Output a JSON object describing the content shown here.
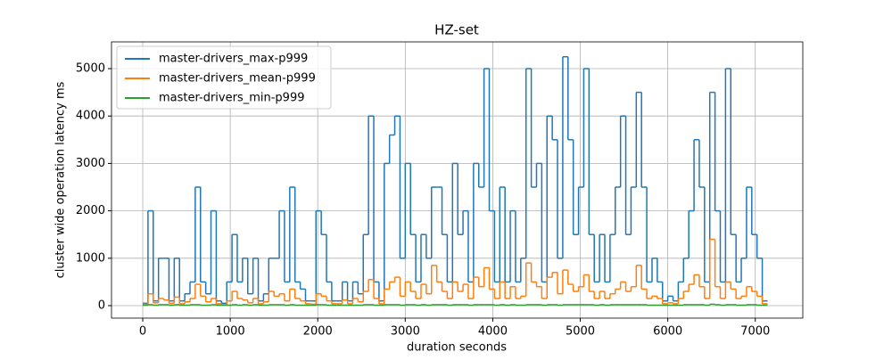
{
  "chart_data": {
    "type": "line",
    "step": "post",
    "title": "HZ-set",
    "x_label": "duration seconds",
    "y_label": "cluster wide operation latency ms",
    "x": [
      0,
      60,
      120,
      180,
      240,
      300,
      360,
      420,
      480,
      540,
      600,
      660,
      720,
      780,
      840,
      900,
      960,
      1020,
      1080,
      1140,
      1200,
      1260,
      1320,
      1380,
      1440,
      1500,
      1560,
      1620,
      1680,
      1740,
      1800,
      1860,
      1920,
      1980,
      2040,
      2100,
      2160,
      2220,
      2280,
      2340,
      2400,
      2460,
      2520,
      2580,
      2640,
      2700,
      2760,
      2820,
      2880,
      2940,
      3000,
      3060,
      3120,
      3180,
      3240,
      3300,
      3360,
      3420,
      3480,
      3540,
      3600,
      3660,
      3720,
      3780,
      3840,
      3900,
      3960,
      4020,
      4080,
      4140,
      4200,
      4260,
      4320,
      4380,
      4440,
      4500,
      4560,
      4620,
      4680,
      4740,
      4800,
      4860,
      4920,
      4980,
      5040,
      5100,
      5160,
      5220,
      5280,
      5340,
      5400,
      5460,
      5520,
      5580,
      5640,
      5700,
      5760,
      5820,
      5880,
      5940,
      6000,
      6060,
      6120,
      6180,
      6240,
      6300,
      6360,
      6420,
      6480,
      6540,
      6600,
      6660,
      6720,
      6780,
      6840,
      6900,
      6960,
      7020,
      7080,
      7140
    ],
    "series": [
      {
        "name": "master-drivers_max-p999",
        "color": "#1f77b4",
        "values": [
          50,
          2000,
          100,
          1000,
          1000,
          100,
          1000,
          100,
          250,
          500,
          2500,
          500,
          250,
          2000,
          100,
          50,
          500,
          1500,
          500,
          1000,
          250,
          1000,
          100,
          250,
          1000,
          1000,
          2000,
          500,
          2500,
          500,
          350,
          100,
          100,
          2000,
          1500,
          500,
          100,
          100,
          500,
          100,
          500,
          250,
          1500,
          4000,
          500,
          100,
          3000,
          3600,
          4000,
          1000,
          3000,
          1500,
          500,
          1500,
          1000,
          2500,
          2500,
          1500,
          500,
          3000,
          1500,
          2000,
          500,
          3000,
          2500,
          5000,
          2000,
          500,
          2500,
          500,
          2000,
          500,
          1000,
          5000,
          2500,
          3000,
          500,
          4000,
          3500,
          1000,
          5250,
          3500,
          1500,
          2500,
          5000,
          1500,
          500,
          1500,
          500,
          1500,
          2500,
          4000,
          1500,
          2500,
          4500,
          2500,
          500,
          1000,
          500,
          100,
          200,
          100,
          500,
          1000,
          2000,
          3500,
          2500,
          500,
          4500,
          2000,
          500,
          5000,
          1500,
          500,
          1000,
          2500,
          1500,
          1000,
          100,
          100
        ]
      },
      {
        "name": "master-drivers_mean-p999",
        "color": "#ff7f0e",
        "values": [
          30,
          250,
          60,
          150,
          120,
          50,
          180,
          40,
          80,
          150,
          450,
          200,
          80,
          150,
          40,
          20,
          100,
          300,
          150,
          120,
          60,
          150,
          40,
          80,
          300,
          200,
          250,
          100,
          350,
          150,
          100,
          40,
          30,
          250,
          200,
          100,
          40,
          40,
          120,
          40,
          150,
          80,
          300,
          550,
          150,
          40,
          350,
          500,
          600,
          200,
          500,
          300,
          150,
          450,
          250,
          850,
          500,
          300,
          150,
          500,
          300,
          450,
          150,
          600,
          400,
          800,
          350,
          150,
          500,
          150,
          400,
          150,
          200,
          900,
          500,
          400,
          150,
          600,
          700,
          250,
          750,
          450,
          300,
          400,
          650,
          300,
          150,
          300,
          150,
          250,
          350,
          500,
          300,
          400,
          850,
          350,
          150,
          200,
          150,
          40,
          60,
          40,
          150,
          300,
          450,
          650,
          400,
          150,
          1400,
          400,
          150,
          500,
          350,
          150,
          200,
          400,
          300,
          200,
          40,
          40
        ]
      },
      {
        "name": "master-drivers_min-p999",
        "color": "#2ca02c",
        "values": [
          10,
          20,
          10,
          20,
          20,
          10,
          20,
          10,
          10,
          20,
          20,
          10,
          10,
          20,
          10,
          10,
          10,
          20,
          10,
          20,
          10,
          20,
          10,
          10,
          20,
          20,
          20,
          10,
          20,
          10,
          10,
          10,
          10,
          20,
          20,
          10,
          10,
          10,
          10,
          10,
          10,
          10,
          20,
          20,
          10,
          10,
          20,
          20,
          20,
          10,
          20,
          20,
          10,
          20,
          10,
          20,
          20,
          20,
          10,
          20,
          20,
          20,
          10,
          20,
          20,
          20,
          20,
          10,
          20,
          10,
          20,
          10,
          10,
          20,
          20,
          20,
          10,
          20,
          20,
          10,
          20,
          20,
          20,
          20,
          20,
          20,
          10,
          20,
          10,
          20,
          20,
          20,
          20,
          20,
          20,
          20,
          10,
          10,
          10,
          10,
          10,
          10,
          10,
          20,
          20,
          20,
          20,
          10,
          30,
          20,
          10,
          20,
          20,
          10,
          10,
          20,
          20,
          10,
          10,
          10
        ]
      }
    ],
    "xlim": [
      -357,
      7543
    ],
    "ylim": [
      -263,
      5564
    ],
    "xticks": [
      0,
      1000,
      2000,
      3000,
      4000,
      5000,
      6000,
      7000
    ],
    "yticks": [
      0,
      1000,
      2000,
      3000,
      4000,
      5000
    ],
    "grid": true,
    "legend": "upper-left"
  }
}
